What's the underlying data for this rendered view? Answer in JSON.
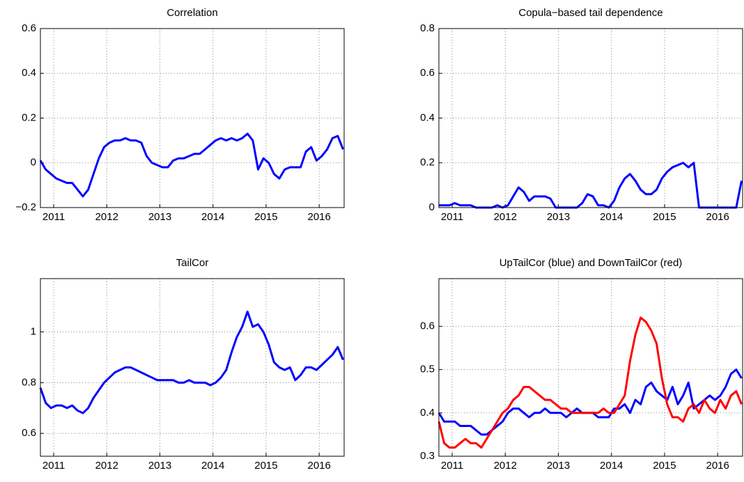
{
  "chart_data": [
    {
      "type": "line",
      "title": "Correlation",
      "x": [
        2010.75,
        2010.85,
        2010.95,
        2011.05,
        2011.15,
        2011.25,
        2011.35,
        2011.45,
        2011.55,
        2011.65,
        2011.75,
        2011.85,
        2011.95,
        2012.05,
        2012.15,
        2012.25,
        2012.35,
        2012.45,
        2012.55,
        2012.65,
        2012.75,
        2012.85,
        2012.95,
        2013.05,
        2013.15,
        2013.25,
        2013.35,
        2013.45,
        2013.55,
        2013.65,
        2013.75,
        2013.85,
        2013.95,
        2014.05,
        2014.15,
        2014.25,
        2014.35,
        2014.45,
        2014.55,
        2014.65,
        2014.75,
        2014.85,
        2014.95,
        2015.05,
        2015.15,
        2015.25,
        2015.35,
        2015.45,
        2015.55,
        2015.65,
        2015.75,
        2015.85,
        2015.95,
        2016.05,
        2016.15,
        2016.25,
        2016.35,
        2016.45
      ],
      "series": [
        {
          "color": "#0000ff",
          "values": [
            0.01,
            -0.03,
            -0.05,
            -0.07,
            -0.08,
            -0.09,
            -0.09,
            -0.12,
            -0.15,
            -0.12,
            -0.05,
            0.02,
            0.07,
            0.09,
            0.1,
            0.1,
            0.11,
            0.1,
            0.1,
            0.09,
            0.03,
            0.0,
            -0.01,
            -0.02,
            -0.02,
            0.01,
            0.02,
            0.02,
            0.03,
            0.04,
            0.04,
            0.06,
            0.08,
            0.1,
            0.11,
            0.1,
            0.11,
            0.1,
            0.11,
            0.13,
            0.1,
            -0.03,
            0.02,
            0.0,
            -0.05,
            -0.07,
            -0.03,
            -0.02,
            -0.02,
            -0.02,
            0.05,
            0.07,
            0.01,
            0.03,
            0.06,
            0.11,
            0.12,
            0.06
          ]
        }
      ],
      "xlim": [
        2010.75,
        2016.47
      ],
      "xticks": [
        2011,
        2012,
        2013,
        2014,
        2015,
        2016
      ],
      "ylim": [
        -0.2,
        0.6
      ],
      "yticks": [
        {
          "value": -0.2,
          "label": "−0.2"
        },
        0,
        0.2,
        0.4,
        0.6
      ],
      "grid": true
    },
    {
      "type": "line",
      "title": "Copula−based tail dependence",
      "x": [
        2010.75,
        2010.85,
        2010.95,
        2011.05,
        2011.15,
        2011.25,
        2011.35,
        2011.45,
        2011.55,
        2011.65,
        2011.75,
        2011.85,
        2011.95,
        2012.05,
        2012.15,
        2012.25,
        2012.35,
        2012.45,
        2012.55,
        2012.65,
        2012.75,
        2012.85,
        2012.95,
        2013.05,
        2013.15,
        2013.25,
        2013.35,
        2013.45,
        2013.55,
        2013.65,
        2013.75,
        2013.85,
        2013.95,
        2014.05,
        2014.15,
        2014.25,
        2014.35,
        2014.45,
        2014.55,
        2014.65,
        2014.75,
        2014.85,
        2014.95,
        2015.05,
        2015.15,
        2015.25,
        2015.35,
        2015.45,
        2015.55,
        2015.65,
        2015.75,
        2015.85,
        2015.95,
        2016.05,
        2016.15,
        2016.25,
        2016.35,
        2016.45
      ],
      "series": [
        {
          "color": "#0000ff",
          "values": [
            0.01,
            0.01,
            0.01,
            0.02,
            0.01,
            0.01,
            0.01,
            0,
            0,
            0,
            0,
            0.01,
            0,
            0.01,
            0.05,
            0.09,
            0.07,
            0.03,
            0.05,
            0.05,
            0.05,
            0.04,
            0,
            0,
            0,
            0,
            0,
            0.02,
            0.06,
            0.05,
            0.01,
            0.01,
            0,
            0.03,
            0.09,
            0.13,
            0.15,
            0.12,
            0.08,
            0.06,
            0.06,
            0.08,
            0.13,
            0.16,
            0.18,
            0.19,
            0.2,
            0.18,
            0.2,
            0,
            0,
            0,
            0,
            0,
            0,
            0,
            0,
            0.12
          ]
        }
      ],
      "xlim": [
        2010.75,
        2016.47
      ],
      "xticks": [
        2011,
        2012,
        2013,
        2014,
        2015,
        2016
      ],
      "ylim": [
        0,
        0.8
      ],
      "yticks": [
        0,
        0.2,
        0.4,
        0.6,
        0.8
      ],
      "grid": true
    },
    {
      "type": "line",
      "title": "TailCor",
      "x": [
        2010.75,
        2010.85,
        2010.95,
        2011.05,
        2011.15,
        2011.25,
        2011.35,
        2011.45,
        2011.55,
        2011.65,
        2011.75,
        2011.85,
        2011.95,
        2012.05,
        2012.15,
        2012.25,
        2012.35,
        2012.45,
        2012.55,
        2012.65,
        2012.75,
        2012.85,
        2012.95,
        2013.05,
        2013.15,
        2013.25,
        2013.35,
        2013.45,
        2013.55,
        2013.65,
        2013.75,
        2013.85,
        2013.95,
        2014.05,
        2014.15,
        2014.25,
        2014.35,
        2014.45,
        2014.55,
        2014.65,
        2014.75,
        2014.85,
        2014.95,
        2015.05,
        2015.15,
        2015.25,
        2015.35,
        2015.45,
        2015.55,
        2015.65,
        2015.75,
        2015.85,
        2015.95,
        2016.05,
        2016.15,
        2016.25,
        2016.35,
        2016.45
      ],
      "series": [
        {
          "color": "#0000ff",
          "values": [
            0.78,
            0.72,
            0.7,
            0.71,
            0.71,
            0.7,
            0.71,
            0.69,
            0.68,
            0.7,
            0.74,
            0.77,
            0.8,
            0.82,
            0.84,
            0.85,
            0.86,
            0.86,
            0.85,
            0.84,
            0.83,
            0.82,
            0.81,
            0.81,
            0.81,
            0.81,
            0.8,
            0.8,
            0.81,
            0.8,
            0.8,
            0.8,
            0.79,
            0.8,
            0.82,
            0.85,
            0.92,
            0.98,
            1.02,
            1.08,
            1.02,
            1.03,
            1.0,
            0.95,
            0.88,
            0.86,
            0.85,
            0.86,
            0.81,
            0.83,
            0.86,
            0.86,
            0.85,
            0.87,
            0.89,
            0.91,
            0.94,
            0.89
          ]
        }
      ],
      "xlim": [
        2010.75,
        2016.47
      ],
      "xticks": [
        2011,
        2012,
        2013,
        2014,
        2015,
        2016
      ],
      "ylim": [
        0.51,
        1.21
      ],
      "yticks": [
        0.6,
        0.8,
        1
      ],
      "grid": true
    },
    {
      "type": "line",
      "title": "UpTailCor (blue) and DownTailCor (red)",
      "x": [
        2010.75,
        2010.85,
        2010.95,
        2011.05,
        2011.15,
        2011.25,
        2011.35,
        2011.45,
        2011.55,
        2011.65,
        2011.75,
        2011.85,
        2011.95,
        2012.05,
        2012.15,
        2012.25,
        2012.35,
        2012.45,
        2012.55,
        2012.65,
        2012.75,
        2012.85,
        2012.95,
        2013.05,
        2013.15,
        2013.25,
        2013.35,
        2013.45,
        2013.55,
        2013.65,
        2013.75,
        2013.85,
        2013.95,
        2014.05,
        2014.15,
        2014.25,
        2014.35,
        2014.45,
        2014.55,
        2014.65,
        2014.75,
        2014.85,
        2014.95,
        2015.05,
        2015.15,
        2015.25,
        2015.35,
        2015.45,
        2015.55,
        2015.65,
        2015.75,
        2015.85,
        2015.95,
        2016.05,
        2016.15,
        2016.25,
        2016.35,
        2016.45
      ],
      "series": [
        {
          "color": "#0000ff",
          "values": [
            0.4,
            0.38,
            0.38,
            0.38,
            0.37,
            0.37,
            0.37,
            0.36,
            0.35,
            0.35,
            0.36,
            0.37,
            0.38,
            0.4,
            0.41,
            0.41,
            0.4,
            0.39,
            0.4,
            0.4,
            0.41,
            0.4,
            0.4,
            0.4,
            0.39,
            0.4,
            0.41,
            0.4,
            0.4,
            0.4,
            0.39,
            0.39,
            0.39,
            0.41,
            0.41,
            0.42,
            0.4,
            0.43,
            0.42,
            0.46,
            0.47,
            0.45,
            0.44,
            0.43,
            0.46,
            0.42,
            0.44,
            0.47,
            0.41,
            0.42,
            0.43,
            0.44,
            0.43,
            0.44,
            0.46,
            0.49,
            0.5,
            0.48
          ]
        },
        {
          "color": "#ff0000",
          "values": [
            0.38,
            0.33,
            0.32,
            0.32,
            0.33,
            0.34,
            0.33,
            0.33,
            0.32,
            0.34,
            0.36,
            0.38,
            0.4,
            0.41,
            0.43,
            0.44,
            0.46,
            0.46,
            0.45,
            0.44,
            0.43,
            0.43,
            0.42,
            0.41,
            0.41,
            0.4,
            0.4,
            0.4,
            0.4,
            0.4,
            0.4,
            0.41,
            0.4,
            0.4,
            0.42,
            0.44,
            0.52,
            0.58,
            0.62,
            0.61,
            0.59,
            0.56,
            0.48,
            0.42,
            0.39,
            0.39,
            0.38,
            0.41,
            0.42,
            0.4,
            0.43,
            0.41,
            0.4,
            0.43,
            0.41,
            0.44,
            0.45,
            0.42
          ]
        }
      ],
      "xlim": [
        2010.75,
        2016.47
      ],
      "xticks": [
        2011,
        2012,
        2013,
        2014,
        2015,
        2016
      ],
      "ylim": [
        0.3,
        0.71
      ],
      "yticks": [
        0.3,
        0.4,
        0.5,
        0.6
      ],
      "grid": true
    }
  ]
}
